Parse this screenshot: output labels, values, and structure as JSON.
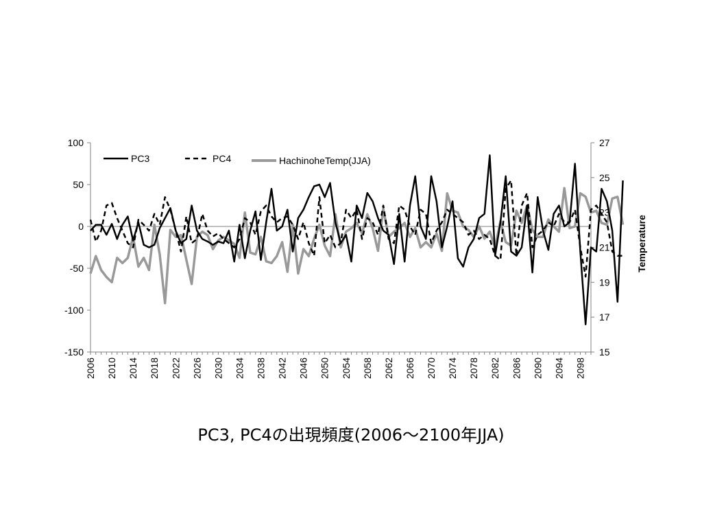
{
  "caption": "PC3, PC4の出現頻度(2006〜2100年JJA)",
  "chart_data": {
    "type": "line",
    "title": "",
    "xlabel": "",
    "ylabel_left": "",
    "ylabel_right": "Temperature",
    "x_range": [
      2006,
      2100
    ],
    "x_ticks": [
      2006,
      2010,
      2014,
      2018,
      2022,
      2026,
      2030,
      2034,
      2038,
      2042,
      2046,
      2050,
      2054,
      2058,
      2062,
      2066,
      2070,
      2074,
      2078,
      2082,
      2086,
      2090,
      2094,
      2098
    ],
    "y_left_range": [
      -150,
      100
    ],
    "y_left_ticks": [
      -150,
      -100,
      -50,
      0,
      50,
      100
    ],
    "y_right_range": [
      15,
      27
    ],
    "y_right_ticks": [
      15,
      17,
      19,
      21,
      23,
      25,
      27
    ],
    "legend_position": "top-left",
    "series": [
      {
        "name": "PC3",
        "axis": "left",
        "color": "#000000",
        "dash": "solid",
        "values": [
          -5,
          2,
          2,
          -10,
          3,
          -15,
          2,
          12,
          -17,
          5,
          -22,
          -25,
          -22,
          -2,
          10,
          22,
          -5,
          -20,
          -15,
          25,
          -5,
          -15,
          -18,
          -22,
          -18,
          -20,
          -5,
          -42,
          2,
          -38,
          -5,
          18,
          -40,
          5,
          45,
          -5,
          0,
          20,
          -30,
          10,
          20,
          35,
          48,
          50,
          35,
          52,
          5,
          -20,
          -10,
          -42,
          25,
          10,
          40,
          30,
          10,
          -5,
          -10,
          -45,
          15,
          -42,
          25,
          60,
          0,
          -15,
          60,
          30,
          -25,
          0,
          30,
          -38,
          -48,
          -25,
          -15,
          10,
          15,
          85,
          -35,
          5,
          60,
          -30,
          -35,
          -25,
          25,
          -55,
          35,
          -5,
          -28,
          15,
          25,
          0,
          5,
          75,
          -30,
          -117,
          -25,
          -30,
          45,
          30,
          -5,
          -90,
          55
        ]
      },
      {
        "name": "PC4",
        "axis": "left",
        "color": "#000000",
        "dash": "dashed",
        "values": [
          8,
          -18,
          -5,
          25,
          28,
          10,
          -5,
          -20,
          -25,
          8,
          2,
          -5,
          15,
          2,
          35,
          20,
          -5,
          -30,
          12,
          -20,
          -15,
          15,
          -5,
          -12,
          -8,
          -15,
          -20,
          -25,
          -15,
          10,
          5,
          -10,
          18,
          25,
          12,
          5,
          10,
          12,
          2,
          -15,
          5,
          -20,
          -35,
          35,
          -20,
          -10,
          -25,
          -20,
          20,
          10,
          20,
          -15,
          10,
          5,
          -10,
          25,
          -15,
          -20,
          25,
          20,
          0,
          -10,
          20,
          15,
          -20,
          -5,
          5,
          20,
          15,
          10,
          5,
          -10,
          -5,
          -15,
          -10,
          -15,
          -35,
          -40,
          45,
          55,
          -35,
          25,
          40,
          -25,
          -10,
          -5,
          5,
          0,
          15,
          5,
          5,
          20,
          -25,
          -60,
          20,
          25,
          15,
          5,
          -30,
          -35,
          -35
        ]
      },
      {
        "name": "HachinoheTemp(JJA)",
        "axis": "right",
        "color": "#999999",
        "dash": "solid",
        "values": [
          19.5,
          20.5,
          19.7,
          19.3,
          19.0,
          20.4,
          20.1,
          20.4,
          21.6,
          19.9,
          20.4,
          19.7,
          22.3,
          20.6,
          17.8,
          22.0,
          21.6,
          21.7,
          20.3,
          18.9,
          21.6,
          21.9,
          21.7,
          20.9,
          21.4,
          21.6,
          21.4,
          21.2,
          20.4,
          23.0,
          20.7,
          20.6,
          21.6,
          20.2,
          20.1,
          20.5,
          21.3,
          19.6,
          22.3,
          19.5,
          20.9,
          20.5,
          21.5,
          22.3,
          21.1,
          20.5,
          22.9,
          21.0,
          21.9,
          22.1,
          22.4,
          21.8,
          22.9,
          22.1,
          20.8,
          23.2,
          21.6,
          21.9,
          22.1,
          22.4,
          21.6,
          22.1,
          21.0,
          21.3,
          21.0,
          21.8,
          20.8,
          24.1,
          23.1,
          23.0,
          22.2,
          22.0,
          21.6,
          22.2,
          21.5,
          21.9,
          21.0,
          22.5,
          21.3,
          21.1,
          23.1,
          22.4,
          23.4,
          22.0,
          21.6,
          21.6,
          22.6,
          22.2,
          21.9,
          24.4,
          22.1,
          22.2,
          24.1,
          23.9,
          23.0,
          23.1,
          22.4,
          22.3,
          23.8,
          23.9,
          22.3
        ]
      }
    ]
  }
}
